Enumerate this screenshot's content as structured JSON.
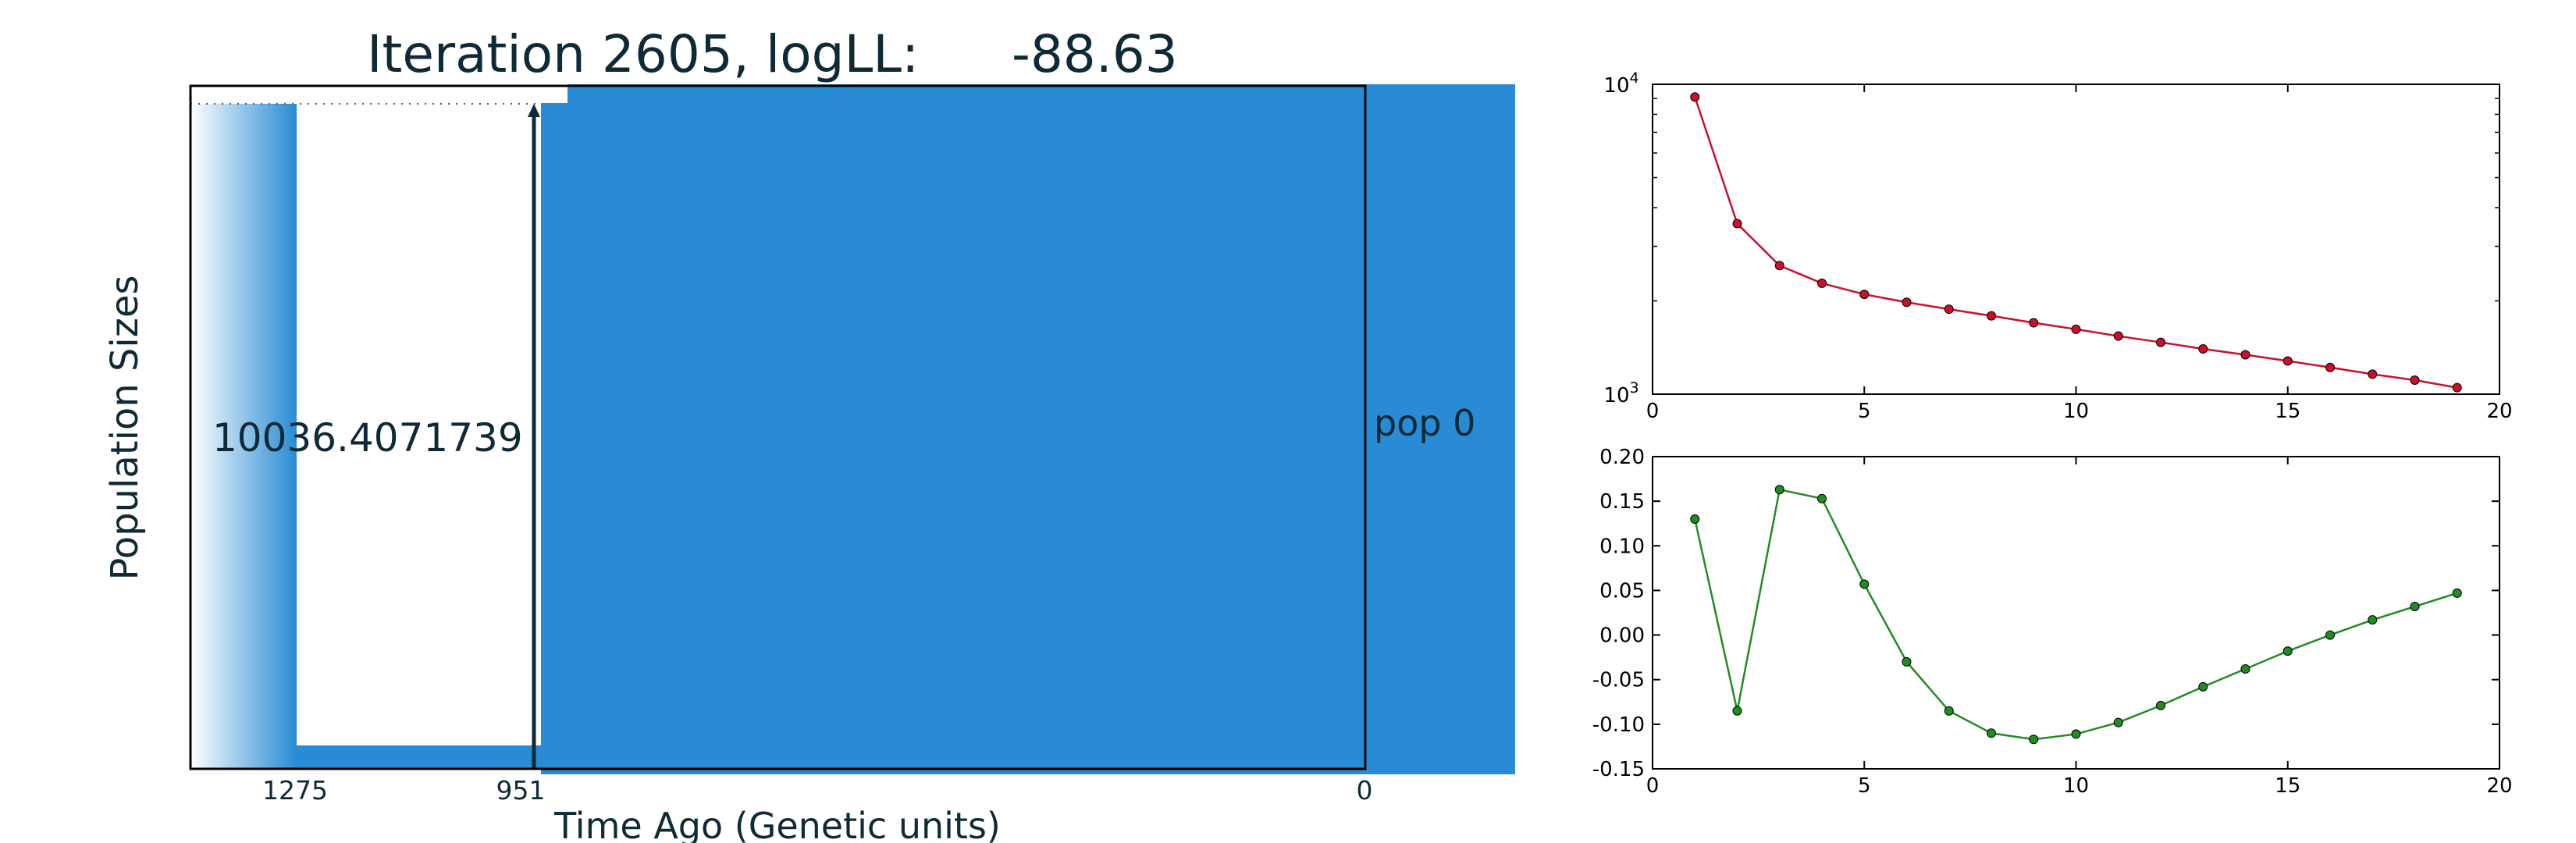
{
  "main_plot": {
    "title_prefix": "Iteration 2605, logLL:",
    "title_value": "-88.63",
    "ylabel": "Population Sizes",
    "xlabel": "Time Ago (Genetic units)",
    "x_ticks": [
      "1275",
      "951",
      "0"
    ],
    "size_annotation": "10036.4071739",
    "pop_label": "pop 0",
    "colors": {
      "fill": "#288bd4",
      "text": "#0f2a36"
    }
  },
  "chart_data": [
    {
      "type": "line",
      "scale_y": "log",
      "color": "#c8102e",
      "xlim": [
        0,
        20
      ],
      "ylim": [
        1000,
        10000
      ],
      "x_ticks": [
        "0",
        "5",
        "10",
        "15",
        "20"
      ],
      "y_ticks": [
        "10^3",
        "10^4"
      ],
      "x": [
        1,
        2,
        3,
        4,
        5,
        6,
        7,
        8,
        9,
        10,
        11,
        12,
        13,
        14,
        15,
        16,
        17,
        18,
        19
      ],
      "values": [
        9100,
        3550,
        2600,
        2280,
        2100,
        1980,
        1880,
        1790,
        1700,
        1620,
        1540,
        1470,
        1400,
        1340,
        1280,
        1220,
        1160,
        1110,
        1050
      ]
    },
    {
      "type": "line",
      "color": "#228b22",
      "xlim": [
        0,
        20
      ],
      "ylim": [
        -0.15,
        0.2
      ],
      "x_ticks": [
        "0",
        "5",
        "10",
        "15",
        "20"
      ],
      "y_ticks": [
        "-0.15",
        "-0.10",
        "-0.05",
        "0.00",
        "0.05",
        "0.10",
        "0.15",
        "0.20"
      ],
      "x": [
        1,
        2,
        3,
        4,
        5,
        6,
        7,
        8,
        9,
        10,
        11,
        12,
        13,
        14,
        15,
        16,
        17,
        18,
        19
      ],
      "values": [
        0.13,
        -0.085,
        0.163,
        0.153,
        0.057,
        -0.03,
        -0.085,
        -0.11,
        -0.117,
        -0.111,
        -0.098,
        -0.079,
        -0.058,
        -0.038,
        -0.018,
        0.0,
        0.017,
        0.032,
        0.047
      ]
    }
  ]
}
